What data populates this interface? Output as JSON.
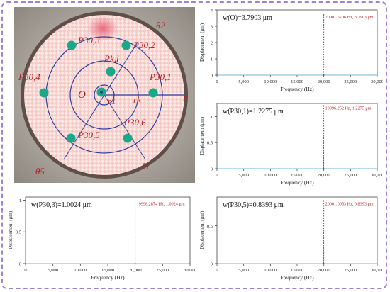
{
  "photo": {
    "labels": {
      "theta2": "θ2",
      "theta5": "θ5",
      "thetal": "θl",
      "p303": "P30,3",
      "p302": "P30,2",
      "p304": "P30,4",
      "p301": "P30,1",
      "p305": "P30,5",
      "p306": "P30,6",
      "pkl": "Pk,l",
      "O": "O",
      "r1": "r1",
      "rk": "rk",
      "r": "r"
    }
  },
  "chart_data": [
    {
      "type": "line",
      "label": "w(O)=3.7903 μm",
      "xlabel": "Frequency (Hz)",
      "ylabel": "Displacement (μm)",
      "xlim": [
        0,
        30000
      ],
      "ylim": [
        0,
        4
      ],
      "xticks": [
        "0",
        "5,000",
        "10,000",
        "15,000",
        "20,000",
        "25,000",
        "30,000"
      ],
      "yticks": [
        "0",
        "1",
        "2",
        "3",
        "4"
      ],
      "peak_x": 20001.5706,
      "peak_y": 3.7903,
      "annotation": "20001.5706 Hz, 3.7903 μm",
      "baseline": 0.0
    },
    {
      "type": "line",
      "label": "w(P30,1)=1.2275 μm",
      "xlabel": "Frequency (Hz)",
      "ylabel": "Displacement (μm)",
      "xlim": [
        0,
        30000
      ],
      "ylim": [
        0,
        1.25
      ],
      "xticks": [
        "0",
        "5,000",
        "10,000",
        "15,000",
        "20,000",
        "25,000",
        "30,000"
      ],
      "yticks": [
        "0",
        "0.5",
        "1"
      ],
      "peak_x": 19996.252,
      "peak_y": 1.2275,
      "annotation": "19996.252 Hz, 1.2275 μm",
      "baseline": 0.0
    },
    {
      "type": "line",
      "label": "w(P30,3)=1.0024 μm",
      "xlabel": "Frequency (Hz)",
      "ylabel": "Displacement (μm)",
      "xlim": [
        0,
        30000
      ],
      "ylim": [
        0,
        1.05
      ],
      "xticks": [
        "0",
        "5,000",
        "10,000",
        "15,000",
        "20,000",
        "25,000",
        "30,000"
      ],
      "yticks": [
        "0",
        "0.5",
        "1"
      ],
      "peak_x": 19998.2874,
      "peak_y": 1.0024,
      "annotation": "19998.2874 Hz, 1.0024 μm",
      "baseline": 0.0
    },
    {
      "type": "line",
      "label": "w(P30,5)=0.8393 μm",
      "xlabel": "Frequency (Hz)",
      "ylabel": "Displacement (μm)",
      "xlim": [
        0,
        30000
      ],
      "ylim": [
        0,
        0.88
      ],
      "xticks": [
        "0",
        "5,000",
        "10,000",
        "15,000",
        "20,000",
        "25,000",
        "30,000"
      ],
      "yticks": [
        "0",
        "0.5"
      ],
      "peak_x": 20001.0053,
      "peak_y": 0.8393,
      "annotation": "20001.0053 Hz, 0.8393 μm",
      "baseline": 0.0
    }
  ]
}
